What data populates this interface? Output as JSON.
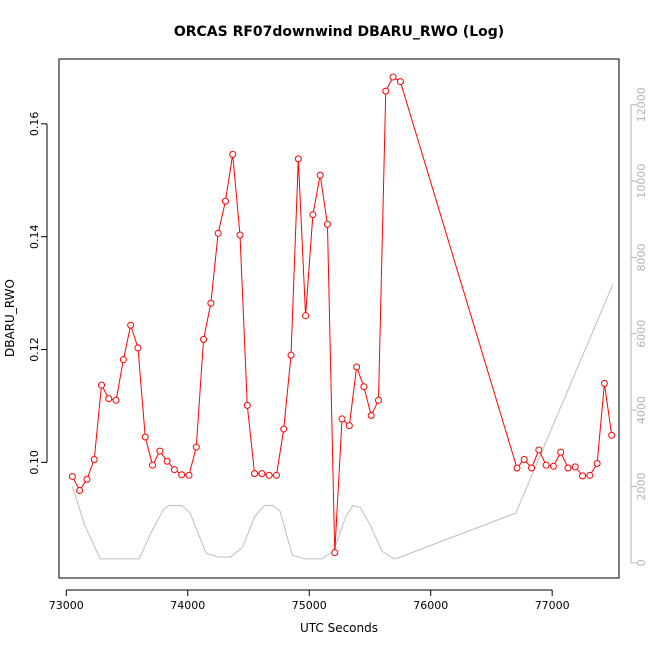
{
  "chart_data": {
    "type": "line",
    "title": "ORCAS RF07downwind DBARU_RWO (Log)",
    "xlabel": "UTC Seconds",
    "ylabel": "DBARU_RWO",
    "xlim": [
      72940,
      77550
    ],
    "ylim": [
      0.0795,
      0.1715
    ],
    "y2lim": [
      -400,
      13200
    ],
    "x_ticks": [
      73000,
      74000,
      75000,
      76000,
      77000
    ],
    "x_tick_labels": [
      "73000",
      "74000",
      "75000",
      "76000",
      "77000"
    ],
    "y_ticks": [
      0.1,
      0.12,
      0.14,
      0.16
    ],
    "y_tick_labels": [
      "0.10",
      "0.12",
      "0.14",
      "0.16"
    ],
    "y2_ticks": [
      0,
      2000,
      4000,
      6000,
      8000,
      10000,
      12000
    ],
    "y2_tick_labels": [
      "0",
      "2000",
      "4000",
      "6000",
      "8000",
      "10000",
      "12000"
    ],
    "colors": {
      "primary_series": "#ff0000",
      "secondary_series": "#bebebe",
      "axis_left": "#000000",
      "axis_right": "#b3b3b3"
    },
    "series": [
      {
        "axis": "left",
        "style": "line+open-circle",
        "x": [
          73050,
          73110,
          73170,
          73230,
          73290,
          73350,
          73410,
          73470,
          73530,
          73590,
          73650,
          73710,
          73770,
          73830,
          73890,
          73950,
          74010,
          74070,
          74130,
          74190,
          74250,
          74310,
          74370,
          74430,
          74490,
          74550,
          74610,
          74670,
          74730,
          74790,
          74850,
          74910,
          74970,
          75030,
          75090,
          75150,
          75210,
          75270,
          75330,
          75390,
          75450,
          75510,
          75570,
          75630,
          75690,
          75750,
          76710,
          76770,
          76830,
          76890,
          76950,
          77010,
          77070,
          77130,
          77190,
          77250,
          77310,
          77370,
          77430,
          77490
        ],
        "y": [
          0.0975,
          0.095,
          0.097,
          0.1005,
          0.1137,
          0.1113,
          0.111,
          0.1182,
          0.1243,
          0.1203,
          0.1045,
          0.0995,
          0.102,
          0.1002,
          0.0987,
          0.0978,
          0.0977,
          0.1027,
          0.1218,
          0.1282,
          0.1406,
          0.1463,
          0.1546,
          0.1403,
          0.1101,
          0.098,
          0.098,
          0.0977,
          0.0977,
          0.1059,
          0.119,
          0.1538,
          0.126,
          0.1439,
          0.1509,
          0.1422,
          0.084,
          0.1077,
          0.1065,
          0.1169,
          0.1134,
          0.1083,
          0.111,
          0.1658,
          0.1683,
          0.1675,
          0.099,
          0.1005,
          0.099,
          0.1022,
          0.0995,
          0.0993,
          0.1018,
          0.099,
          0.0992,
          0.0976,
          0.0977,
          0.0998,
          0.114,
          0.1048
        ]
      },
      {
        "axis": "right",
        "style": "line",
        "x": [
          73050,
          73150,
          73280,
          73350,
          73500,
          73600,
          73700,
          73800,
          73850,
          73950,
          74020,
          74150,
          74250,
          74350,
          74450,
          74550,
          74630,
          74700,
          74760,
          74860,
          74960,
          75100,
          75200,
          75300,
          75360,
          75420,
          75500,
          75600,
          75700,
          75750,
          76700,
          77500
        ],
        "y": [
          2000,
          1000,
          100,
          100,
          100,
          100,
          800,
          1400,
          1500,
          1500,
          1300,
          250,
          150,
          150,
          400,
          1200,
          1500,
          1500,
          1350,
          200,
          100,
          100,
          300,
          1200,
          1500,
          1450,
          1000,
          300,
          100,
          150,
          1300,
          7300
        ]
      }
    ]
  }
}
